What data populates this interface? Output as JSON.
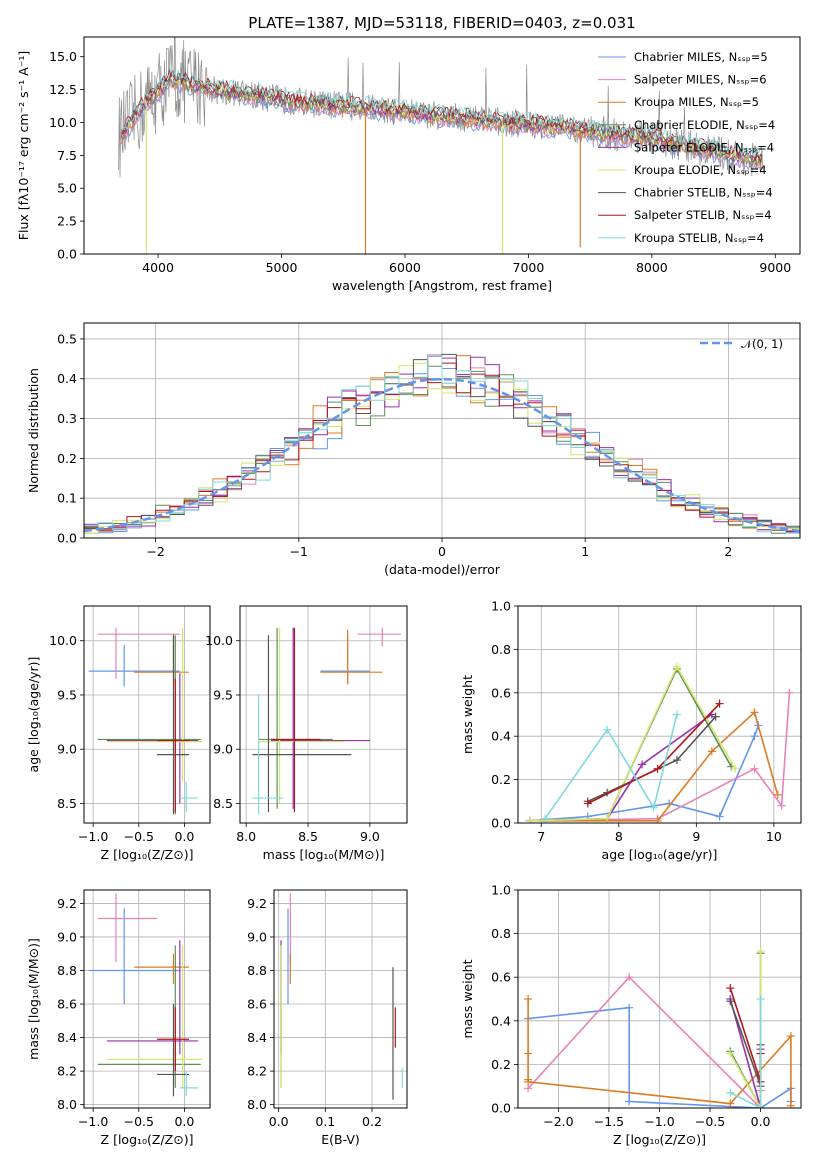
{
  "colors": [
    "#6495ed",
    "#e883b7",
    "#dd7b22",
    "#5f8f5f",
    "#9b2fae",
    "#d1e86c",
    "#555555",
    "#b0161b",
    "#7fd9dd"
  ],
  "chart_data": [
    {
      "id": "spectrum",
      "type": "line",
      "title": "PLATE=1387, MJD=53118, FIBERID=0403, z=0.031",
      "xlabel": "wavelength [Angstrom, rest frame]",
      "ylabel": "Flux [fλ10⁻¹⁷ erg cm⁻² s⁻¹ A⁻¹]",
      "xlim": [
        3400,
        9200
      ],
      "ylim": [
        0,
        16.5
      ],
      "xticks": [
        "4000",
        "5000",
        "6000",
        "7000",
        "8000",
        "9000"
      ],
      "yticks": [
        "0.0",
        "2.5",
        "5.0",
        "7.5",
        "10.0",
        "12.5",
        "15.0"
      ],
      "grid": false,
      "legend": "top-right",
      "legend_entries": [
        "Chabrier MILES, Nₛₛₚ=5",
        "Salpeter MILES, Nₛₛₚ=6",
        "Kroupa MILES, Nₛₛₚ=5",
        "Chabrier ELODIE, Nₛₛₚ=4",
        "Salpeter ELODIE, Nₛₛₚ=4",
        "Kroupa ELODIE, Nₛₛₚ=4",
        "Chabrier STELIB, Nₛₛₚ=4",
        "Salpeter STELIB, Nₛₛₚ=4",
        "Kroupa STELIB, Nₛₛₚ=4"
      ],
      "continuum": {
        "x": [
          3700,
          3900,
          4100,
          4400,
          4800,
          5200,
          5600,
          6000,
          6400,
          6800,
          7200,
          7600,
          8000,
          8400,
          8800
        ],
        "y": [
          9.0,
          11.5,
          13.3,
          12.6,
          12.0,
          11.5,
          11.2,
          10.8,
          10.4,
          10.0,
          9.7,
          9.2,
          8.8,
          8.0,
          7.2
        ]
      },
      "dips": [
        {
          "x": 3905,
          "y": 0.0
        },
        {
          "x": 5680,
          "y": 0.0
        },
        {
          "x": 6790,
          "y": 0.0
        },
        {
          "x": 7420,
          "y": 0.5
        }
      ]
    },
    {
      "id": "residuals",
      "type": "histogram",
      "xlabel": "(data-model)/error",
      "ylabel": "Normed distribution",
      "xlim": [
        -2.5,
        2.5
      ],
      "ylim": [
        0,
        0.54
      ],
      "xticks": [
        "−2",
        "−1",
        "0",
        "1",
        "2"
      ],
      "yticks": [
        "0.0",
        "0.1",
        "0.2",
        "0.3",
        "0.4",
        "0.5"
      ],
      "grid": true,
      "legend": "top-right",
      "gauss_label": "𝒩(0, 1)",
      "bin_width": 0.1
    },
    {
      "id": "age-vs-Z",
      "type": "scatter",
      "xlabel": "Z [log₁₀(Z/Z⊙)]",
      "ylabel": "age  [log₁₀(age/yr)]",
      "xlim": [
        -1.1,
        0.28
      ],
      "ylim": [
        8.32,
        10.32
      ],
      "xticks": [
        "−1.0",
        "−0.5",
        "0.0"
      ],
      "yticks": [
        "8.5",
        "9.0",
        "9.5",
        "10.0"
      ],
      "grid": true,
      "points": [
        {
          "c": 0,
          "x": -0.66,
          "xe": [
            -1.05,
            -0.05
          ],
          "y": 9.72,
          "ye": [
            9.58,
            9.96
          ]
        },
        {
          "c": 1,
          "x": -0.75,
          "xe": [
            -0.95,
            -0.05
          ],
          "y": 10.06,
          "ye": [
            9.65,
            10.12
          ]
        },
        {
          "c": 2,
          "x": -0.12,
          "xe": [
            -0.55,
            0.05
          ],
          "y": 9.71,
          "ye": [
            9.6,
            10.06
          ]
        },
        {
          "c": 3,
          "x": -0.1,
          "xe": [
            -0.95,
            0.18
          ],
          "y": 9.09,
          "ye": [
            8.4,
            10.05
          ]
        },
        {
          "c": 4,
          "x": -0.05,
          "xe": [
            -0.85,
            0.15
          ],
          "y": 9.08,
          "ye": [
            8.5,
            9.7
          ]
        },
        {
          "c": 5,
          "x": -0.02,
          "xe": [
            -0.85,
            0.2
          ],
          "y": 9.07,
          "ye": [
            8.7,
            10.12
          ]
        },
        {
          "c": 6,
          "x": -0.12,
          "xe": [
            -0.3,
            0.05
          ],
          "y": 8.95,
          "ye": [
            8.4,
            10.05
          ]
        },
        {
          "c": 7,
          "x": -0.1,
          "xe": [
            -0.3,
            0.05
          ],
          "y": 9.08,
          "ye": [
            8.42,
            9.65
          ]
        },
        {
          "c": 8,
          "x": 0.02,
          "xe": [
            -0.05,
            0.15
          ],
          "y": 8.55,
          "ye": [
            8.42,
            8.7
          ]
        }
      ]
    },
    {
      "id": "age-vs-mass",
      "type": "scatter",
      "xlabel": "mass [log₁₀(M/M⊙)]",
      "ylabel": "",
      "xlim": [
        7.95,
        9.3
      ],
      "ylim": [
        8.32,
        10.32
      ],
      "xticks": [
        "8.0",
        "8.5",
        "9.0"
      ],
      "yticks": [
        "8.5",
        "9.0",
        "9.5",
        "10.0"
      ],
      "grid": true,
      "points": [
        {
          "c": 0,
          "x": 8.82,
          "xe": [
            8.6,
            9.0
          ],
          "y": 9.72,
          "ye": [
            9.6,
            10.06
          ]
        },
        {
          "c": 1,
          "x": 9.1,
          "xe": [
            8.9,
            9.25
          ],
          "y": 10.06,
          "ye": [
            9.95,
            10.12
          ]
        },
        {
          "c": 2,
          "x": 8.82,
          "xe": [
            8.6,
            9.1
          ],
          "y": 9.71,
          "ye": [
            9.6,
            10.1
          ]
        },
        {
          "c": 3,
          "x": 8.25,
          "xe": [
            8.1,
            8.7
          ],
          "y": 9.09,
          "ye": [
            8.45,
            10.12
          ]
        },
        {
          "c": 4,
          "x": 8.38,
          "xe": [
            8.2,
            9.0
          ],
          "y": 9.08,
          "ye": [
            8.45,
            10.12
          ]
        },
        {
          "c": 5,
          "x": 8.27,
          "xe": [
            8.1,
            8.8
          ],
          "y": 9.07,
          "ye": [
            8.5,
            10.12
          ]
        },
        {
          "c": 6,
          "x": 8.18,
          "xe": [
            8.05,
            8.85
          ],
          "y": 8.95,
          "ye": [
            8.42,
            10.05
          ]
        },
        {
          "c": 7,
          "x": 8.39,
          "xe": [
            8.2,
            8.6
          ],
          "y": 9.09,
          "ye": [
            8.42,
            10.12
          ]
        },
        {
          "c": 8,
          "x": 8.1,
          "xe": [
            8.05,
            8.3
          ],
          "y": 8.55,
          "ye": [
            8.4,
            9.5
          ]
        }
      ]
    },
    {
      "id": "weight-vs-age",
      "type": "line",
      "xlabel": "age  [log₁₀(age/yr)]",
      "ylabel": "mass weight",
      "xlim": [
        6.7,
        10.35
      ],
      "ylim": [
        0,
        1.0
      ],
      "xticks": [
        "7",
        "8",
        "9",
        "10"
      ],
      "yticks": [
        "0.0",
        "0.2",
        "0.4",
        "0.6",
        "0.8",
        "1.0"
      ],
      "grid": true,
      "series": [
        {
          "c": 0,
          "x": [
            6.85,
            7.6,
            8.65,
            9.3,
            9.75,
            9.8
          ],
          "y": [
            0.01,
            0.03,
            0.09,
            0.03,
            0.4,
            0.45
          ]
        },
        {
          "c": 1,
          "x": [
            6.85,
            8.5,
            9.75,
            10.1,
            10.2
          ],
          "y": [
            0.01,
            0.02,
            0.25,
            0.08,
            0.6
          ]
        },
        {
          "c": 2,
          "x": [
            6.85,
            8.5,
            9.2,
            9.75,
            10.05
          ],
          "y": [
            0.01,
            0.01,
            0.33,
            0.51,
            0.13
          ]
        },
        {
          "c": 3,
          "x": [
            6.85,
            7.85,
            8.75,
            9.45
          ],
          "y": [
            0.01,
            0.02,
            0.71,
            0.26
          ]
        },
        {
          "c": 4,
          "x": [
            6.85,
            7.85,
            8.3,
            9.2
          ],
          "y": [
            0.01,
            0.02,
            0.27,
            0.5
          ]
        },
        {
          "c": 5,
          "x": [
            6.85,
            7.85,
            8.75,
            9.5
          ],
          "y": [
            0.01,
            0.02,
            0.72,
            0.25
          ]
        },
        {
          "c": 6,
          "x": [
            7.6,
            7.85,
            8.75,
            9.25
          ],
          "y": [
            0.1,
            0.14,
            0.29,
            0.49
          ]
        },
        {
          "c": 7,
          "x": [
            7.6,
            8.5,
            9.3
          ],
          "y": [
            0.09,
            0.25,
            0.55
          ]
        },
        {
          "c": 8,
          "x": [
            7.05,
            7.85,
            8.45,
            8.75
          ],
          "y": [
            0.02,
            0.43,
            0.07,
            0.5
          ]
        }
      ]
    },
    {
      "id": "mass-vs-Z",
      "type": "scatter",
      "xlabel": "Z [log₁₀(Z/Z⊙)]",
      "ylabel": "mass [log₁₀(M/M⊙)]",
      "xlim": [
        -1.1,
        0.28
      ],
      "ylim": [
        7.98,
        9.28
      ],
      "xticks": [
        "−1.0",
        "−0.5",
        "0.0"
      ],
      "yticks": [
        "8.0",
        "8.2",
        "8.4",
        "8.6",
        "8.8",
        "9.0",
        "9.2"
      ],
      "grid": true,
      "points": [
        {
          "c": 0,
          "x": -0.66,
          "xe": [
            -1.05,
            -0.05
          ],
          "y": 8.8,
          "ye": [
            8.6,
            9.17
          ]
        },
        {
          "c": 1,
          "x": -0.75,
          "xe": [
            -0.95,
            -0.3
          ],
          "y": 9.11,
          "ye": [
            8.85,
            9.26
          ]
        },
        {
          "c": 2,
          "x": -0.12,
          "xe": [
            -0.55,
            0.05
          ],
          "y": 8.82,
          "ye": [
            8.72,
            8.9
          ]
        },
        {
          "c": 3,
          "x": -0.1,
          "xe": [
            -0.95,
            0.18
          ],
          "y": 8.24,
          "ye": [
            8.1,
            8.95
          ]
        },
        {
          "c": 4,
          "x": -0.05,
          "xe": [
            -0.85,
            0.15
          ],
          "y": 8.38,
          "ye": [
            8.3,
            8.98
          ]
        },
        {
          "c": 5,
          "x": -0.02,
          "xe": [
            -0.85,
            0.2
          ],
          "y": 8.27,
          "ye": [
            8.1,
            8.95
          ]
        },
        {
          "c": 6,
          "x": -0.12,
          "xe": [
            -0.3,
            0.05
          ],
          "y": 8.18,
          "ye": [
            8.05,
            8.6
          ]
        },
        {
          "c": 7,
          "x": -0.1,
          "xe": [
            -0.3,
            0.05
          ],
          "y": 8.39,
          "ye": [
            8.2,
            8.58
          ]
        },
        {
          "c": 8,
          "x": 0.02,
          "xe": [
            -0.05,
            0.15
          ],
          "y": 8.1,
          "ye": [
            8.05,
            8.2
          ]
        }
      ]
    },
    {
      "id": "mass-vs-ebv",
      "type": "scatter",
      "xlabel": "E(B-V)",
      "ylabel": "",
      "xlim": [
        -0.01,
        0.275
      ],
      "ylim": [
        7.98,
        9.28
      ],
      "xticks": [
        "0.0",
        "0.1",
        "0.2"
      ],
      "yticks": [
        "8.0",
        "8.2",
        "8.4",
        "8.6",
        "8.8",
        "9.0",
        "9.2"
      ],
      "grid": true,
      "points": [
        {
          "c": 0,
          "x": 0.02,
          "xe": null,
          "y": 8.8,
          "ye": [
            8.6,
            9.17
          ]
        },
        {
          "c": 1,
          "x": 0.025,
          "xe": null,
          "y": 9.11,
          "ye": [
            8.85,
            9.26
          ]
        },
        {
          "c": 2,
          "x": 0.025,
          "xe": null,
          "y": 8.82,
          "ye": [
            8.72,
            8.9
          ]
        },
        {
          "c": 3,
          "x": 0.005,
          "xe": null,
          "y": 8.24,
          "ye": [
            8.1,
            8.95
          ]
        },
        {
          "c": 4,
          "x": 0.005,
          "xe": null,
          "y": 8.38,
          "ye": [
            8.3,
            8.98
          ]
        },
        {
          "c": 5,
          "x": 0.005,
          "xe": null,
          "y": 8.27,
          "ye": [
            8.1,
            8.95
          ]
        },
        {
          "c": 6,
          "x": 0.245,
          "xe": null,
          "y": 8.18,
          "ye": [
            8.03,
            8.82
          ]
        },
        {
          "c": 7,
          "x": 0.25,
          "xe": null,
          "y": 8.39,
          "ye": [
            8.34,
            8.58
          ]
        },
        {
          "c": 8,
          "x": 0.265,
          "xe": null,
          "y": 8.15,
          "ye": [
            8.1,
            8.22
          ]
        }
      ]
    },
    {
      "id": "weight-vs-Z",
      "type": "line",
      "xlabel": "Z [log₁₀(Z/Z⊙)]",
      "ylabel": "mass weight",
      "xlim": [
        -2.4,
        0.4
      ],
      "ylim": [
        0,
        1.0
      ],
      "xticks": [
        "−2.0",
        "−1.5",
        "−1.0",
        "−0.5",
        "0.0"
      ],
      "yticks": [
        "0.0",
        "0.2",
        "0.4",
        "0.6",
        "0.8",
        "1.0"
      ],
      "grid": true,
      "series": [
        {
          "c": 0,
          "x": [
            -2.3,
            -1.3,
            -1.3,
            0.0,
            0.3,
            0.3
          ],
          "y": [
            0.41,
            0.46,
            0.03,
            0.0,
            0.09,
            0.03
          ]
        },
        {
          "c": 1,
          "x": [
            -2.3,
            -1.3,
            0.0,
            0.0
          ],
          "y": [
            0.09,
            0.6,
            0.0,
            0.08
          ]
        },
        {
          "c": 2,
          "x": [
            -2.3,
            -2.3,
            -2.3,
            -2.3,
            -0.3,
            0.3,
            0.3
          ],
          "y": [
            0.5,
            0.25,
            0.13,
            0.12,
            0.02,
            0.33,
            0.01
          ]
        },
        {
          "c": 3,
          "x": [
            -0.3,
            0.0,
            0.0
          ],
          "y": [
            0.26,
            0.0,
            0.71
          ]
        },
        {
          "c": 4,
          "x": [
            -0.3,
            0.0,
            0.0
          ],
          "y": [
            0.5,
            0.0,
            0.27
          ]
        },
        {
          "c": 5,
          "x": [
            -0.3,
            0.0,
            0.0
          ],
          "y": [
            0.25,
            0.0,
            0.72
          ]
        },
        {
          "c": 6,
          "x": [
            -0.3,
            0.0,
            0.0
          ],
          "y": [
            0.49,
            0.1,
            0.29
          ]
        },
        {
          "c": 7,
          "x": [
            -0.3,
            0.0,
            0.0
          ],
          "y": [
            0.55,
            0.12,
            0.25
          ]
        },
        {
          "c": 8,
          "x": [
            -0.3,
            0.0,
            0.0
          ],
          "y": [
            0.07,
            0.0,
            0.5
          ]
        }
      ]
    }
  ]
}
